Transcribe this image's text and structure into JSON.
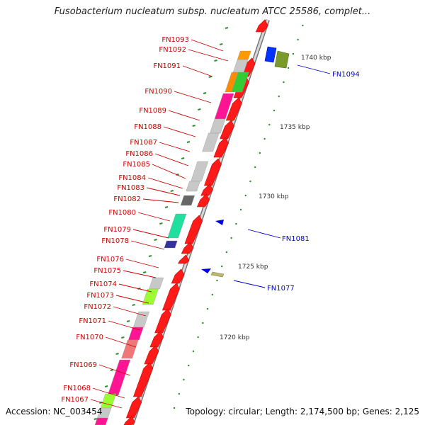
{
  "title": "Fusobacterium nucleatum subsp. nucleatum ATCC 25586, complet...",
  "footer": {
    "accession": "Accession: NC_003454",
    "topology": "Topology: circular; Length: 2,174,500 bp; Genes: 2,125"
  },
  "colors": {
    "forward": "#ff1a1a",
    "reverse_label": "#0000cc",
    "forward_label": "#cc0000",
    "tick": "#2e8b2e"
  },
  "scale_labels": [
    "1740 kbp",
    "1735 kbp",
    "1730 kbp",
    "1725 kbp",
    "1720 kbp"
  ],
  "left_labels": [
    "FN1093",
    "FN1092",
    "FN1091",
    "FN1090",
    "FN1089",
    "FN1088",
    "FN1087",
    "FN1086",
    "FN1085",
    "FN1084",
    "FN1083",
    "FN1082",
    "FN1080",
    "FN1079",
    "FN1078",
    "FN1076",
    "FN1075",
    "FN1074",
    "FN1073",
    "FN1072",
    "FN1071",
    "FN1070",
    "FN1069",
    "FN1068",
    "FN1067"
  ],
  "right_labels": [
    "FN1094",
    "FN1081",
    "FN1077"
  ]
}
